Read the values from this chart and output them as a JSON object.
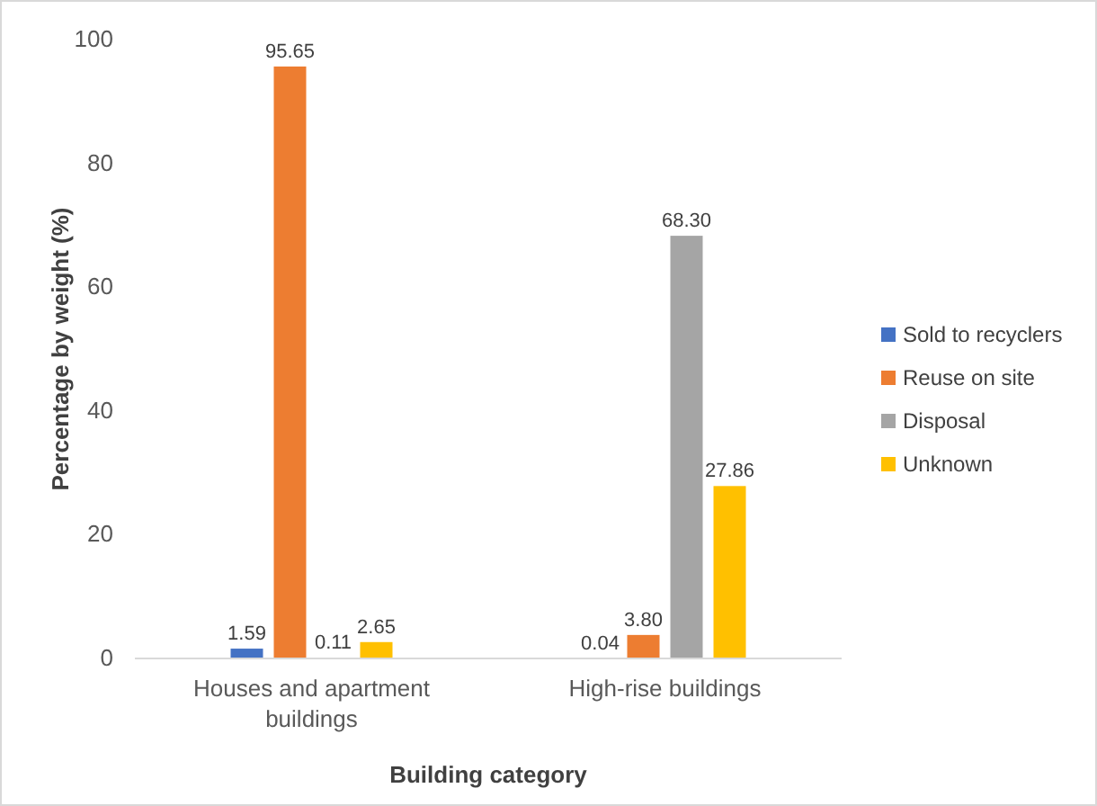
{
  "chart_data": {
    "type": "bar",
    "xlabel": "Building category",
    "ylabel": "Percentage by weight (%)",
    "categories": [
      "Houses and apartment buildings",
      "High-rise buildings"
    ],
    "series": [
      {
        "name": "Sold to recyclers",
        "color": "#4472c4",
        "values": [
          1.59,
          0.04
        ]
      },
      {
        "name": "Reuse on site",
        "color": "#ed7d31",
        "values": [
          95.65,
          3.8
        ]
      },
      {
        "name": "Disposal",
        "color": "#a5a5a5",
        "values": [
          0.11,
          68.3
        ]
      },
      {
        "name": "Unknown",
        "color": "#ffc000",
        "values": [
          2.65,
          27.86
        ]
      }
    ],
    "value_labels": [
      [
        "1.59",
        "0.04"
      ],
      [
        "95.65",
        "3.80"
      ],
      [
        "0.11",
        "68.30"
      ],
      [
        "2.65",
        "27.86"
      ]
    ],
    "ylim": [
      0,
      100
    ],
    "yticks": [
      0,
      20,
      40,
      60,
      80,
      100
    ],
    "grid": false,
    "legend": "right"
  }
}
